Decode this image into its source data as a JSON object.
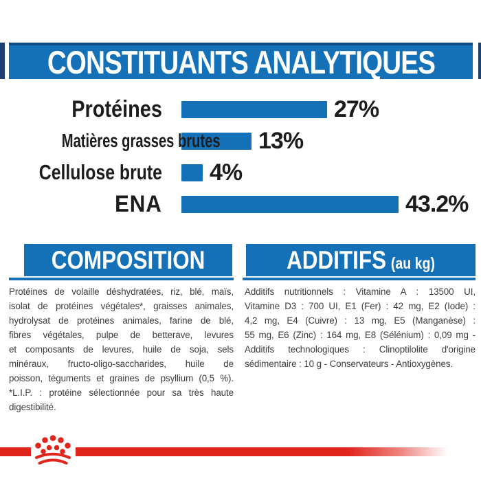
{
  "colors": {
    "blue": "#1471b7",
    "navy_edge": "#1e3f72",
    "red": "#e0251c",
    "text_dark": "#1d1b1c",
    "text_body": "#3c3c3c"
  },
  "banner": {
    "title": "CONSTITUANTS ANALYTIQUES"
  },
  "chart_data": {
    "type": "bar",
    "orientation": "horizontal",
    "title": "CONSTITUANTS ANALYTIQUES",
    "categories": [
      "Protéines",
      "Matières grasses brutes",
      "Cellulose brute",
      "ENA"
    ],
    "values": [
      27,
      13,
      4,
      43.2
    ],
    "value_labels": [
      "27%",
      "13%",
      "4%",
      "43.2%"
    ],
    "unit": "%",
    "bar_color": "#1471b7",
    "xlim": [
      0,
      45
    ],
    "grid": false,
    "legend": false
  },
  "composition": {
    "title": "COMPOSITION",
    "lines": [
      "Protéines de volaille déshydratées, riz, blé, maïs,",
      "isolat de protéines végétales*, graisses animales,",
      "hydrolysat de protéines animales, farine de blé,",
      "fibres végétales, pulpe de betterave, levures",
      "et composants de levures, huile de soja, sels",
      "minéraux, fructo-oligo-saccharides, huile de",
      "poisson, téguments et graines de psyllium (0,5 %).",
      "*L.I.P. : protéine sélectionnée pour sa très haute",
      "digestibilité."
    ]
  },
  "additifs": {
    "title": "ADDITIFS",
    "unit": "(au kg)",
    "lines": [
      "Additifs nutritionnels : Vitamine A : 13500 UI,",
      "Vitamine D3 : 700 UI, E1 (Fer) : 42 mg, E2 (Iode) :",
      "4,2 mg, E4 (Cuivre) : 13 mg, E5 (Manganèse) :",
      "55 mg, E6 (Zinc) : 164 mg, E8 (Sélénium) : 0,09 mg -",
      "Additifs technologiques : Clinoptilolite d'origine",
      "sédimentaire : 10 g - Conservateurs - Antioxygènes."
    ]
  },
  "footer": {
    "logo": "royal-canin-crown"
  }
}
